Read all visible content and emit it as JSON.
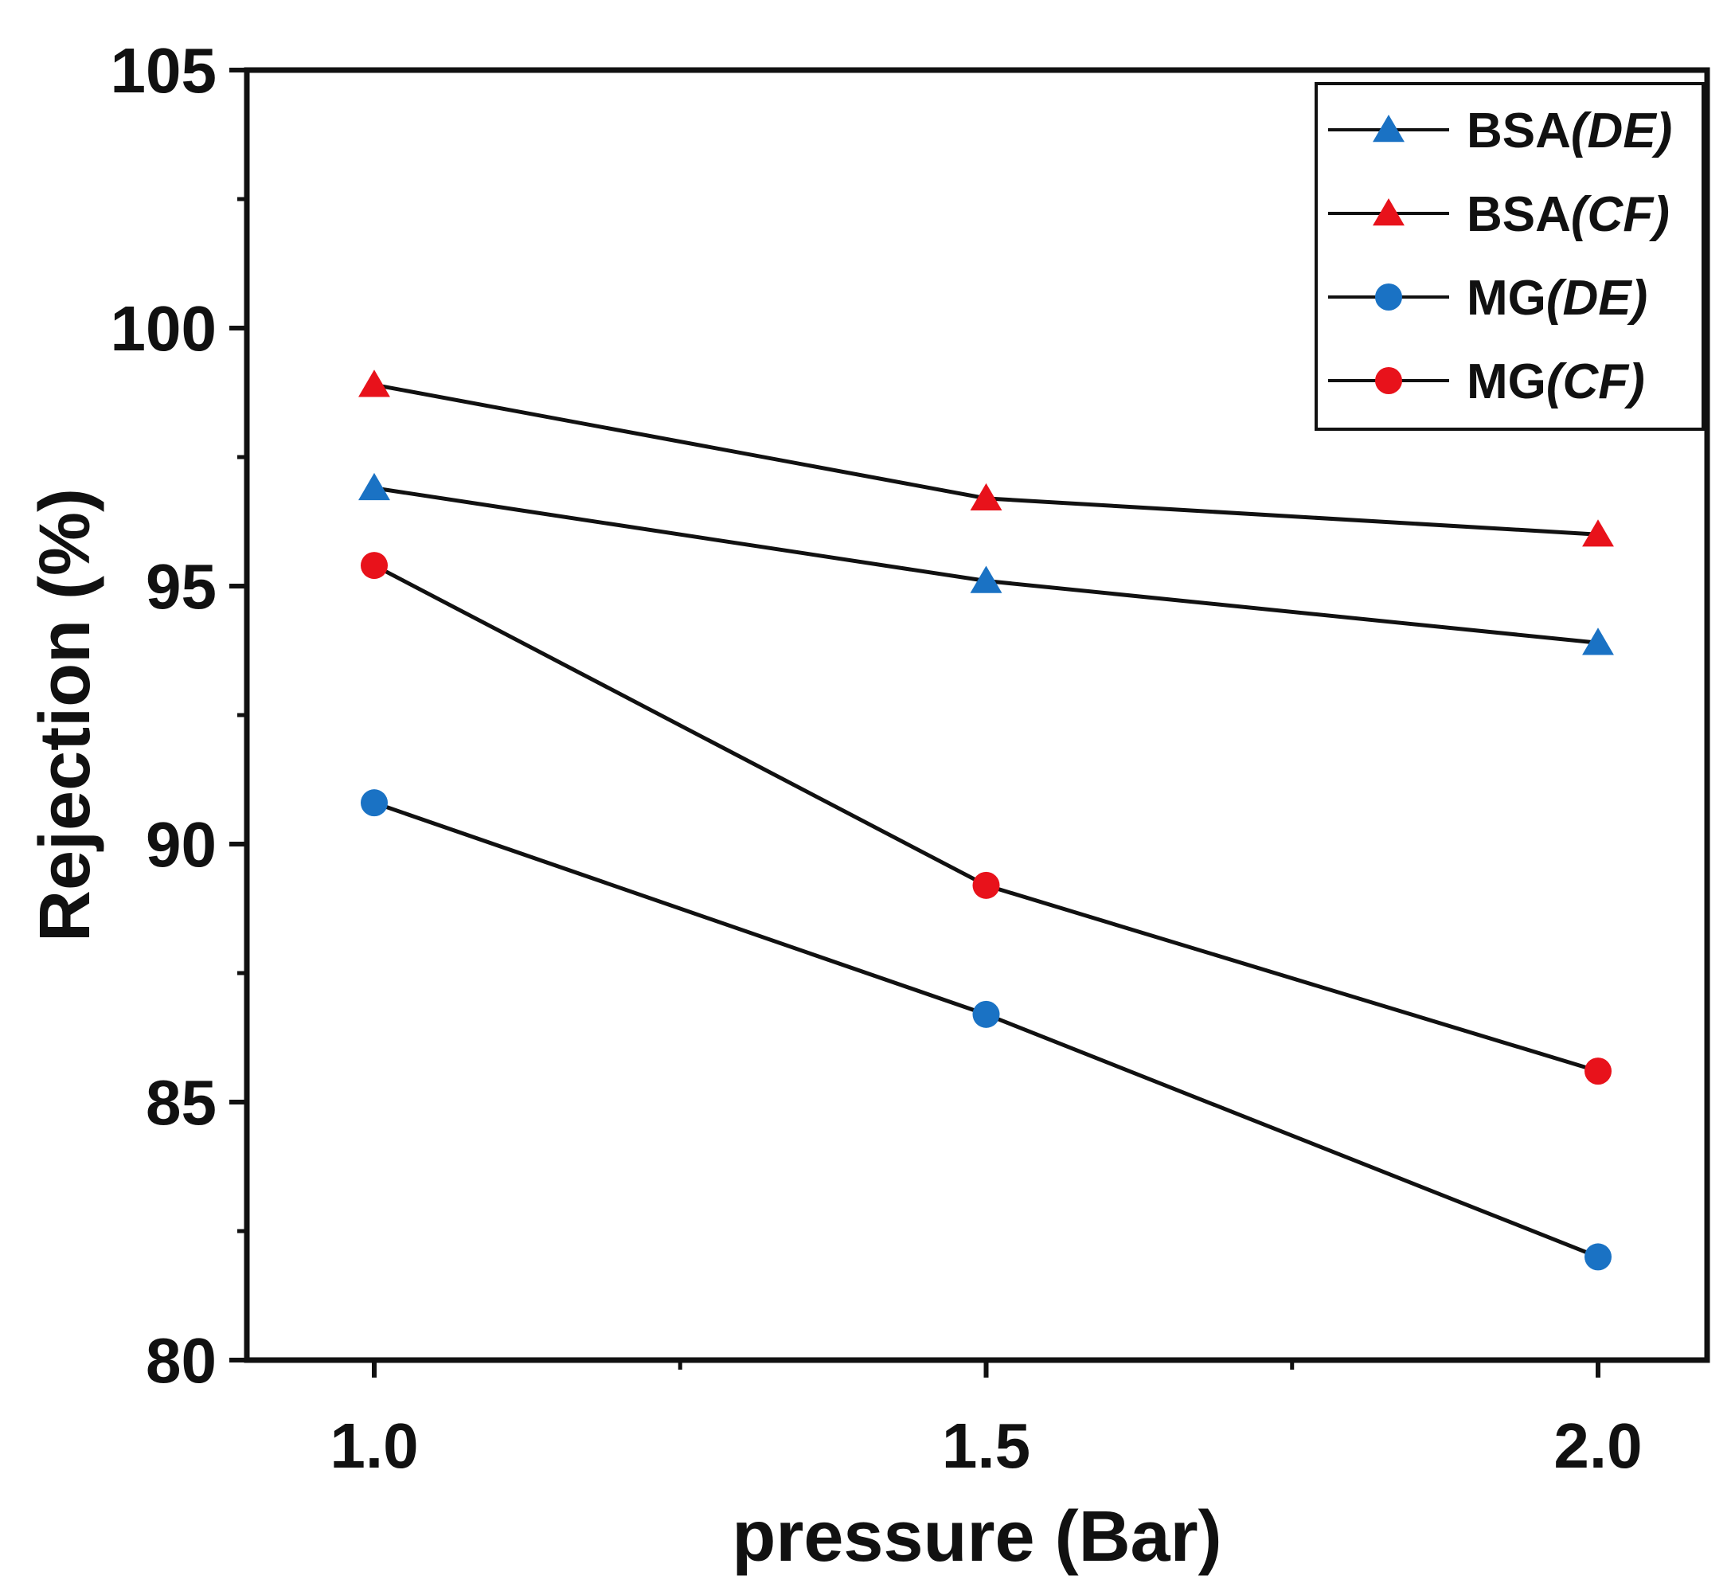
{
  "chart_data": {
    "type": "line",
    "title": "",
    "xlabel": "pressure (Bar)",
    "ylabel": "Rejection (%)",
    "x": [
      1.0,
      1.5,
      2.0
    ],
    "x_tick_labels": [
      "1.0",
      "1.5",
      "2.0"
    ],
    "xlim": [
      0.9,
      2.1
    ],
    "ylim": [
      80,
      105
    ],
    "y_ticks": [
      80,
      85,
      90,
      95,
      100,
      105
    ],
    "y_tick_labels": [
      "80",
      "85",
      "90",
      "95",
      "100",
      "105"
    ],
    "legend_position": "top-right",
    "grid": false,
    "series": [
      {
        "name": "BSA",
        "suffix": "(DE)",
        "marker": "triangle",
        "color": "#1a72c4",
        "values": [
          96.9,
          95.1,
          93.9
        ]
      },
      {
        "name": "BSA",
        "suffix": "(CF)",
        "marker": "triangle",
        "color": "#e8121b",
        "values": [
          98.9,
          96.7,
          96.0
        ]
      },
      {
        "name": "MG",
        "suffix": "(DE)",
        "marker": "circle",
        "color": "#1a72c4",
        "values": [
          90.8,
          86.7,
          82.0
        ]
      },
      {
        "name": "MG",
        "suffix": "(CF)",
        "marker": "circle",
        "color": "#e8121b",
        "values": [
          95.4,
          89.2,
          85.6
        ]
      }
    ]
  }
}
